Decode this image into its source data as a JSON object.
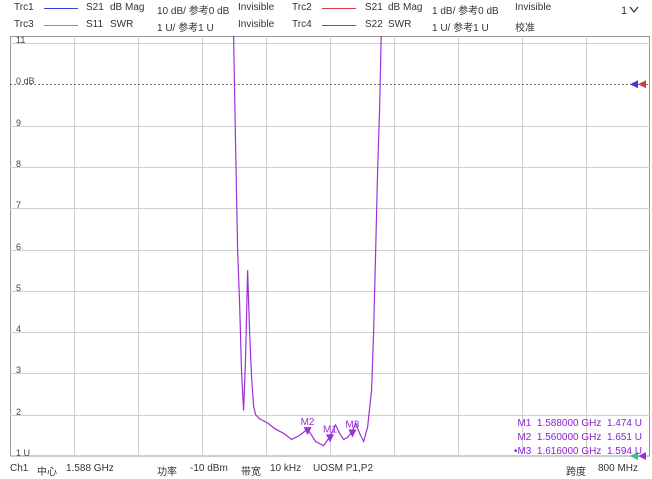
{
  "traces": [
    {
      "name": "Trc1",
      "param": "S21",
      "format": "dB Mag",
      "scale": "10 dB/ 参考0 dB",
      "state": "Invisible",
      "color": "#3b3bd8"
    },
    {
      "name": "Trc2",
      "param": "S21",
      "format": "dB Mag",
      "scale": "1 dB/ 参考0 dB",
      "state": "Invisible",
      "color": "#d83b3b"
    },
    {
      "name": "Trc3",
      "param": "S11",
      "format": "SWR",
      "scale": "1 U/ 参考1 U",
      "state": "Invisible",
      "color": "#2ec48a"
    },
    {
      "name": "Trc4",
      "param": "S22",
      "format": "SWR",
      "scale": "1 U/ 参考1 U",
      "state": "校准",
      "color": "#9b30d9"
    }
  ],
  "collapse_icon": "chevron-down-icon",
  "y_labels": [
    "11",
    "0 dB",
    "9",
    "8",
    "7",
    "6",
    "5",
    "4",
    "3",
    "2",
    "1 U"
  ],
  "markers": [
    {
      "label": "M1",
      "freq": "1.588000 GHz",
      "value": "1.474 U",
      "active": false
    },
    {
      "label": "M2",
      "freq": "1.560000 GHz",
      "value": "1.651 U",
      "active": false
    },
    {
      "label": "M3",
      "freq": "1.616000 GHz",
      "value": "1.594 U",
      "active": true
    }
  ],
  "marker_prefix": "•",
  "footer": {
    "channel": "Ch1",
    "center_label": "中心",
    "center_value": "1.588 GHz",
    "power_label": "功率",
    "power_value": "-10 dBm",
    "bw_label": "带宽",
    "bw_value": "10 kHz",
    "cal": "UOSM P1,P2",
    "span_label": "跨度",
    "span_value": "800 MHz"
  },
  "chart_data": {
    "type": "line",
    "series": [
      {
        "name": "Trc4",
        "values": [
          [
            1.188,
            11.2
          ],
          [
            1.4675,
            11.2
          ],
          [
            1.47,
            8.5
          ],
          [
            1.4725,
            6.0
          ],
          [
            1.475,
            4.7
          ],
          [
            1.4775,
            3.0
          ],
          [
            1.48,
            2.1
          ],
          [
            1.4825,
            3.4
          ],
          [
            1.485,
            5.5
          ],
          [
            1.4875,
            4.0
          ],
          [
            1.49,
            2.9
          ],
          [
            1.4925,
            2.2
          ],
          [
            1.495,
            2.0
          ],
          [
            1.5,
            1.9
          ],
          [
            1.51,
            1.8
          ],
          [
            1.52,
            1.65
          ],
          [
            1.53,
            1.55
          ],
          [
            1.54,
            1.4
          ],
          [
            1.55,
            1.5
          ],
          [
            1.56,
            1.651
          ],
          [
            1.57,
            1.35
          ],
          [
            1.58,
            1.25
          ],
          [
            1.588,
            1.474
          ],
          [
            1.595,
            1.75
          ],
          [
            1.6,
            1.55
          ],
          [
            1.605,
            1.4
          ],
          [
            1.61,
            1.45
          ],
          [
            1.616,
            1.594
          ],
          [
            1.62,
            1.8
          ],
          [
            1.625,
            1.55
          ],
          [
            1.63,
            1.35
          ],
          [
            1.635,
            1.7
          ],
          [
            1.64,
            2.6
          ],
          [
            1.6425,
            4.0
          ],
          [
            1.645,
            5.9
          ],
          [
            1.6475,
            7.9
          ],
          [
            1.65,
            9.4
          ],
          [
            1.652,
            11.2
          ],
          [
            1.988,
            11.2
          ]
        ]
      }
    ],
    "xlim": [
      1.188,
      1.988
    ],
    "ylim": [
      1,
      11
    ]
  }
}
